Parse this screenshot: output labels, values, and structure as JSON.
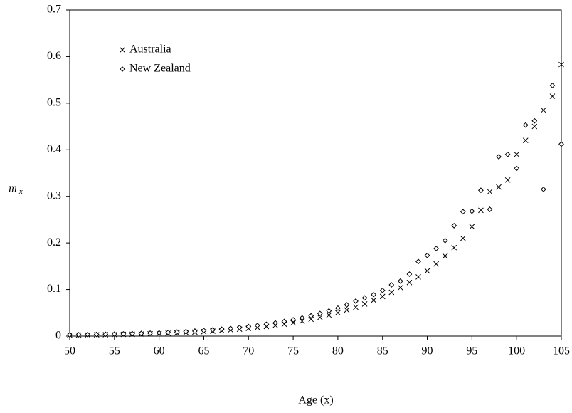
{
  "chart_data": {
    "type": "scatter",
    "xlabel": "Age (x)",
    "ylabel": [
      "m",
      "x"
    ],
    "x": [
      50,
      51,
      52,
      53,
      54,
      55,
      56,
      57,
      58,
      59,
      60,
      61,
      62,
      63,
      64,
      65,
      66,
      67,
      68,
      69,
      70,
      71,
      72,
      73,
      74,
      75,
      76,
      77,
      78,
      79,
      80,
      81,
      82,
      83,
      84,
      85,
      86,
      87,
      88,
      89,
      90,
      91,
      92,
      93,
      94,
      95,
      96,
      97,
      98,
      99,
      100,
      101,
      102,
      103,
      104,
      105
    ],
    "series": [
      {
        "name": "Australia",
        "marker": "x",
        "color": "#000000",
        "values": [
          0.002,
          0.0022,
          0.0025,
          0.0028,
          0.003,
          0.0033,
          0.0037,
          0.004,
          0.0045,
          0.005,
          0.0056,
          0.0062,
          0.0069,
          0.0077,
          0.0086,
          0.0096,
          0.0107,
          0.012,
          0.0133,
          0.0149,
          0.0166,
          0.0185,
          0.0206,
          0.023,
          0.0256,
          0.0285,
          0.032,
          0.036,
          0.04,
          0.045,
          0.05,
          0.056,
          0.062,
          0.069,
          0.077,
          0.085,
          0.094,
          0.104,
          0.115,
          0.127,
          0.14,
          0.155,
          0.172,
          0.19,
          0.21,
          0.235,
          0.27,
          0.31,
          0.32,
          0.335,
          0.39,
          0.42,
          0.45,
          0.485,
          0.515,
          0.583
        ]
      },
      {
        "name": "New Zealand",
        "marker": "diamond",
        "color": "#000000",
        "values": [
          0.0027,
          0.003,
          0.0033,
          0.0036,
          0.004,
          0.0044,
          0.0048,
          0.0053,
          0.0058,
          0.0064,
          0.007,
          0.0078,
          0.0087,
          0.0097,
          0.0108,
          0.012,
          0.0133,
          0.0148,
          0.0165,
          0.0184,
          0.0205,
          0.0228,
          0.0254,
          0.0283,
          0.0315,
          0.035,
          0.039,
          0.0435,
          0.0485,
          0.054,
          0.06,
          0.067,
          0.075,
          0.082,
          0.089,
          0.098,
          0.11,
          0.118,
          0.133,
          0.16,
          0.173,
          0.188,
          0.205,
          0.237,
          0.267,
          0.268,
          0.313,
          0.272,
          0.385,
          0.39,
          0.36,
          0.453,
          0.462,
          0.315,
          0.538,
          0.412
        ]
      }
    ],
    "xlim": [
      50,
      105
    ],
    "xticks": [
      50,
      55,
      60,
      65,
      70,
      75,
      80,
      85,
      90,
      95,
      100,
      105
    ],
    "ylim": [
      0,
      0.7
    ],
    "yticks": [
      0,
      0.1,
      0.2,
      0.3,
      0.4,
      0.5,
      0.6,
      0.7
    ],
    "grid": false,
    "legend": "upper left"
  }
}
